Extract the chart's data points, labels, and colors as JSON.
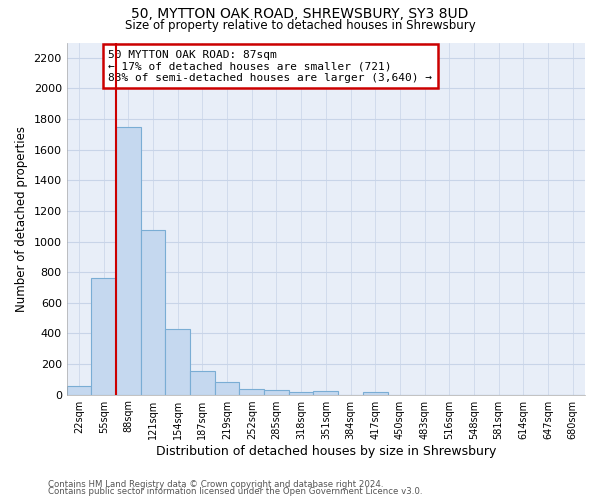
{
  "title": "50, MYTTON OAK ROAD, SHREWSBURY, SY3 8UD",
  "subtitle": "Size of property relative to detached houses in Shrewsbury",
  "xlabel": "Distribution of detached houses by size in Shrewsbury",
  "ylabel": "Number of detached properties",
  "bin_labels": [
    "22sqm",
    "55sqm",
    "88sqm",
    "121sqm",
    "154sqm",
    "187sqm",
    "219sqm",
    "252sqm",
    "285sqm",
    "318sqm",
    "351sqm",
    "384sqm",
    "417sqm",
    "450sqm",
    "483sqm",
    "516sqm",
    "548sqm",
    "581sqm",
    "614sqm",
    "647sqm",
    "680sqm"
  ],
  "bar_values": [
    55,
    760,
    1750,
    1075,
    430,
    155,
    80,
    35,
    30,
    20,
    25,
    0,
    15,
    0,
    0,
    0,
    0,
    0,
    0,
    0,
    0
  ],
  "bar_color": "#c5d8ef",
  "bar_edge_color": "#7aadd4",
  "property_bin_index": 2,
  "vline_color": "#cc0000",
  "annotation_text": "50 MYTTON OAK ROAD: 87sqm\n← 17% of detached houses are smaller (721)\n83% of semi-detached houses are larger (3,640) →",
  "annotation_box_facecolor": "#ffffff",
  "annotation_border_color": "#cc0000",
  "ylim": [
    0,
    2300
  ],
  "yticks": [
    0,
    200,
    400,
    600,
    800,
    1000,
    1200,
    1400,
    1600,
    1800,
    2000,
    2200
  ],
  "grid_color": "#c8d4e8",
  "background_color": "#e8eef8",
  "footnote1": "Contains HM Land Registry data © Crown copyright and database right 2024.",
  "footnote2": "Contains public sector information licensed under the Open Government Licence v3.0."
}
